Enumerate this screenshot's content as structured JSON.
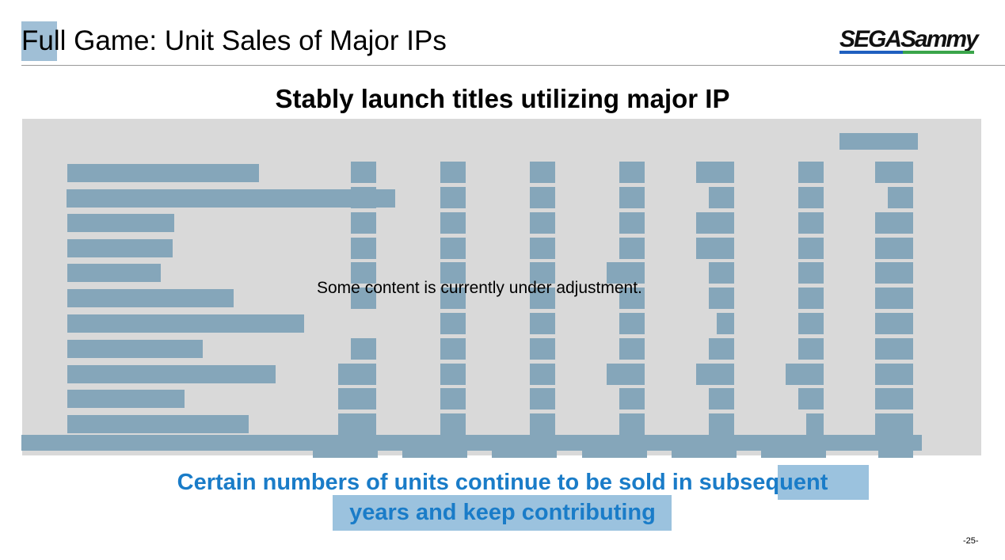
{
  "header": {
    "title": "Full Game: Unit Sales of Major IPs",
    "logo_text_sega": "SEGA",
    "logo_text_sammy": "Sammy"
  },
  "subtitle": "Stably launch titles utilizing major IP",
  "panel": {
    "notice": "Some content is currently under adjustment."
  },
  "footer": {
    "line1": "Certain numbers of units continue to be sold in subsequent",
    "line2": "years and keep contributing"
  },
  "page_number": "-25-",
  "colors": {
    "redaction_block": "#85a6ba",
    "panel_background": "#d9d9d9",
    "footer_text": "#1a7cc8",
    "highlight": "#9bc2de",
    "logo_blue": "#1f5fbf",
    "logo_green": "#3aa54a"
  }
}
